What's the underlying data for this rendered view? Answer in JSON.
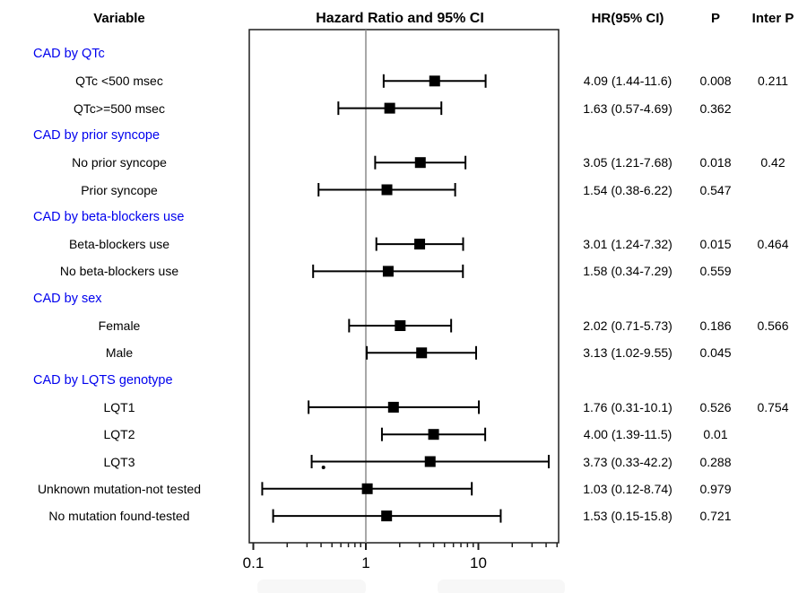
{
  "columns": {
    "variable_header": "Variable",
    "plot_header": "Hazard Ratio and 95% CI",
    "hr_header": "HR(95% CI)",
    "p_header": "P",
    "inter_p_header": "Inter P"
  },
  "colors": {
    "section_header": "#0000ee",
    "text": "#000000",
    "reference_line": "#8c8c8c",
    "plot_border": "#1f1f1f",
    "marker": "#000000",
    "footer_box": "#f7f7f7"
  },
  "chart_data": {
    "type": "forest",
    "x_scale": "log10",
    "x_ticks": [
      "0.1",
      "1",
      "10"
    ],
    "x_min": 0.092,
    "x_max": 51.7,
    "reference_value": 1,
    "title": "Hazard Ratio and 95% CI",
    "rows": [
      {
        "type": "header",
        "label": "CAD by QTc"
      },
      {
        "type": "item",
        "label": "QTc <500 msec",
        "hr": 4.09,
        "lo": 1.44,
        "hi": 11.6,
        "hr_text": "4.09 (1.44-11.6)",
        "p": "0.008",
        "inter_p": "0.211"
      },
      {
        "type": "item",
        "label": "QTc>=500 msec",
        "hr": 1.63,
        "lo": 0.57,
        "hi": 4.69,
        "hr_text": "1.63 (0.57-4.69)",
        "p": "0.362",
        "inter_p": ""
      },
      {
        "type": "header",
        "label": "CAD by prior syncope"
      },
      {
        "type": "item",
        "label": "No prior syncope",
        "hr": 3.05,
        "lo": 1.21,
        "hi": 7.68,
        "hr_text": "3.05 (1.21-7.68)",
        "p": "0.018",
        "inter_p": "0.42"
      },
      {
        "type": "item",
        "label": "Prior syncope",
        "hr": 1.54,
        "lo": 0.38,
        "hi": 6.22,
        "hr_text": "1.54 (0.38-6.22)",
        "p": "0.547",
        "inter_p": ""
      },
      {
        "type": "header",
        "label": "CAD by beta-blockers use"
      },
      {
        "type": "item",
        "label": "Beta-blockers use",
        "hr": 3.01,
        "lo": 1.24,
        "hi": 7.32,
        "hr_text": "3.01 (1.24-7.32)",
        "p": "0.015",
        "inter_p": "0.464"
      },
      {
        "type": "item",
        "label": "No beta-blockers use",
        "hr": 1.58,
        "lo": 0.34,
        "hi": 7.29,
        "hr_text": "1.58 (0.34-7.29)",
        "p": "0.559",
        "inter_p": ""
      },
      {
        "type": "header",
        "label": "CAD by sex"
      },
      {
        "type": "item",
        "label": "Female",
        "hr": 2.02,
        "lo": 0.71,
        "hi": 5.73,
        "hr_text": "2.02 (0.71-5.73)",
        "p": "0.186",
        "inter_p": "0.566"
      },
      {
        "type": "item",
        "label": "Male",
        "hr": 3.13,
        "lo": 1.02,
        "hi": 9.55,
        "hr_text": "3.13 (1.02-9.55)",
        "p": "0.045",
        "inter_p": ""
      },
      {
        "type": "header",
        "label": "CAD by LQTS genotype"
      },
      {
        "type": "item",
        "label": "LQT1",
        "hr": 1.76,
        "lo": 0.31,
        "hi": 10.1,
        "hr_text": "1.76 (0.31-10.1)",
        "p": "0.526",
        "inter_p": "0.754"
      },
      {
        "type": "item",
        "label": "LQT2",
        "hr": 4.0,
        "lo": 1.39,
        "hi": 11.5,
        "hr_text": "4.00 (1.39-11.5)",
        "p": "0.01",
        "inter_p": ""
      },
      {
        "type": "item",
        "label": "LQT3",
        "hr": 3.73,
        "lo": 0.33,
        "hi": 42.2,
        "hr_text": "3.73 (0.33-42.2)",
        "p": "0.288",
        "inter_p": ""
      },
      {
        "type": "item",
        "label": "Unknown mutation-not tested",
        "hr": 1.03,
        "lo": 0.12,
        "hi": 8.74,
        "hr_text": "1.03 (0.12-8.74)",
        "p": "0.979",
        "inter_p": ""
      },
      {
        "type": "item",
        "label": "No mutation found-tested",
        "hr": 1.53,
        "lo": 0.15,
        "hi": 15.8,
        "hr_text": "1.53 (0.15-15.8)",
        "p": "0.721",
        "inter_p": ""
      }
    ],
    "annotation_dot": {
      "value": 0.42,
      "row_index": 15
    }
  }
}
